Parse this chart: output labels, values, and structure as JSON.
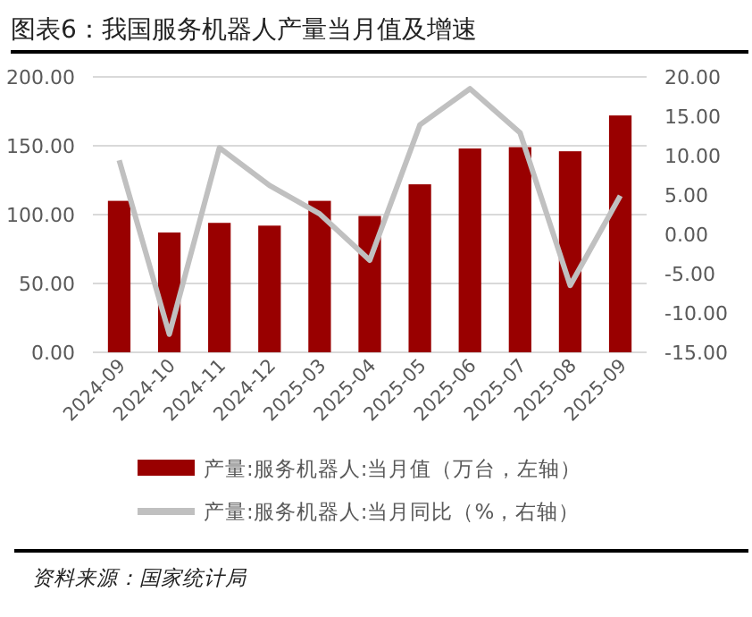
{
  "chart_data": {
    "type": "bar",
    "title": "图表6：我国服务机器人产量当月值及增速",
    "categories": [
      "2024-09",
      "2024-10",
      "2024-11",
      "2024-12",
      "2025-03",
      "2025-04",
      "2025-05",
      "2025-06",
      "2025-07",
      "2025-08",
      "2025-09"
    ],
    "series": [
      {
        "name": "产量:服务机器人:当月值（万台，左轴）",
        "color": "#990000",
        "values": [
          110,
          87,
          94,
          92,
          110,
          99,
          122,
          148,
          149,
          146,
          172
        ]
      },
      {
        "name": "产量:服务机器人:当月同比（%，右轴）",
        "type": "line",
        "axis": "y2",
        "color": "#c0c0c0",
        "values": [
          9.4,
          -12.7,
          11,
          6.2,
          2.6,
          -3.3,
          13.9,
          18.5,
          12.9,
          -6.5,
          4.9
        ]
      }
    ],
    "ylim": [
      0,
      200
    ],
    "yticks": [
      {
        "value": 0,
        "label": "0.00"
      },
      {
        "value": 50,
        "label": "50.00"
      },
      {
        "value": 100,
        "label": "100.00"
      },
      {
        "value": 150,
        "label": "150.00"
      },
      {
        "value": 200,
        "label": "200.00"
      }
    ],
    "y2lim": [
      -15,
      20
    ],
    "y2ticks": [
      {
        "value": -15,
        "label": "-15.00"
      },
      {
        "value": -10,
        "label": "-10.00"
      },
      {
        "value": -5,
        "label": "-5.00"
      },
      {
        "value": 0,
        "label": "0.00"
      },
      {
        "value": 5,
        "label": "5.00"
      },
      {
        "value": 10,
        "label": "10.00"
      },
      {
        "value": 15,
        "label": "15.00"
      },
      {
        "value": 20,
        "label": "20.00"
      }
    ],
    "grid": "y",
    "legend": "bottom",
    "line_style": "solid",
    "marker": "none",
    "annotations": [
      "资料来源：国家统计局"
    ]
  }
}
